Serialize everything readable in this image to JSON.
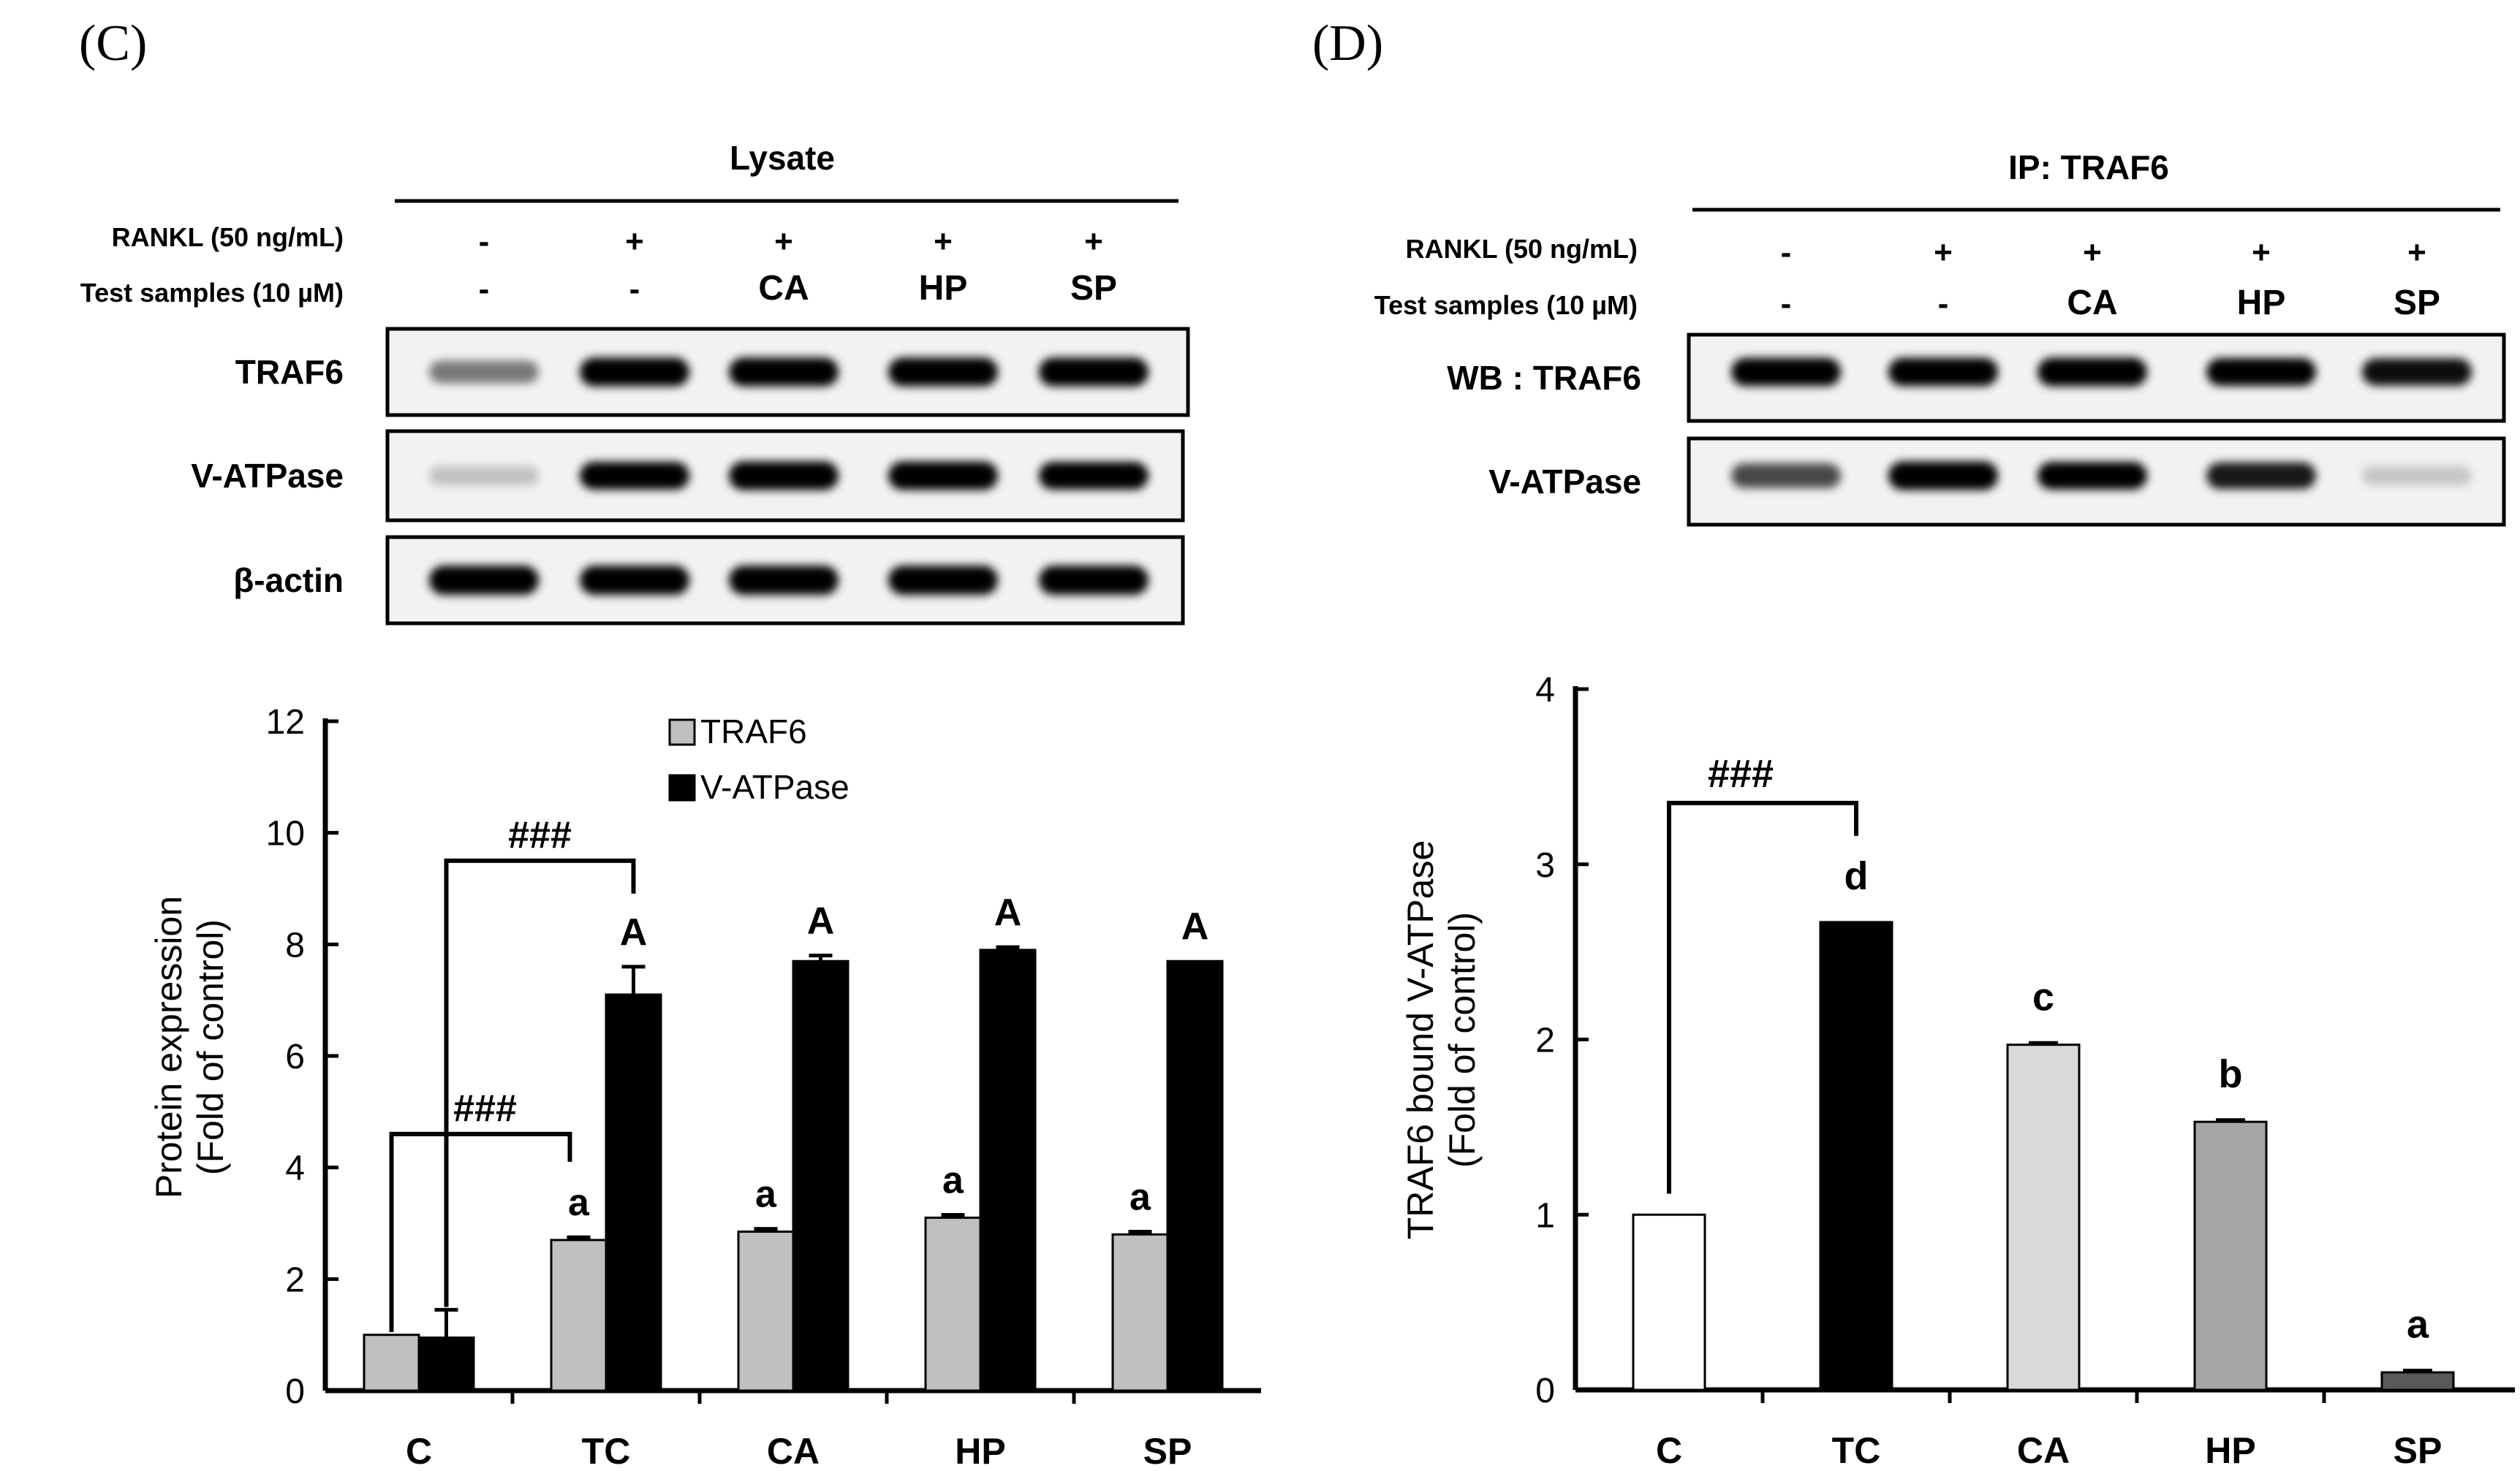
{
  "panel_labels": [
    "(C)",
    "(D)"
  ],
  "blot_c": {
    "header": "Lysate",
    "row_labels": [
      "RANKL (50 ng/mL)",
      "Test samples  (10 µM)"
    ],
    "rankl": [
      "-",
      "+",
      "+",
      "+",
      "+"
    ],
    "samples": [
      "-",
      "-",
      "CA",
      "HP",
      "SP"
    ],
    "band_labels": [
      "TRAF6",
      "V-ATPase",
      "β-actin"
    ],
    "band_intensity": {
      "TRAF6": [
        0.35,
        0.95,
        0.95,
        0.95,
        0.95
      ],
      "V-ATPase": [
        0.05,
        0.85,
        0.95,
        0.92,
        0.85
      ],
      "β-actin": [
        1,
        1,
        1,
        1,
        1
      ]
    }
  },
  "blot_d": {
    "header": "IP: TRAF6",
    "row_labels": [
      "RANKL (50 ng/mL)",
      "Test samples  (10 µM)"
    ],
    "rankl": [
      "-",
      "+",
      "+",
      "+",
      "+"
    ],
    "samples": [
      "-",
      "-",
      "CA",
      "HP",
      "SP"
    ],
    "band_labels": [
      "WB : TRAF6",
      "V-ATPase"
    ],
    "band_intensity": {
      "WB : TRAF6": [
        0.9,
        0.9,
        0.95,
        0.85,
        0.8
      ],
      "V-ATPase": [
        0.55,
        0.95,
        0.85,
        0.75,
        0.03
      ]
    }
  },
  "chart_data": [
    {
      "type": "bar",
      "panel": "C",
      "categories": [
        "C",
        "TC",
        "CA",
        "HP",
        "SP"
      ],
      "series": [
        {
          "name": "TRAF6",
          "values": [
            1.0,
            2.7,
            2.85,
            3.1,
            2.8
          ],
          "errors": [
            0.0,
            0.05,
            0.05,
            0.05,
            0.05
          ],
          "color": "#c0c0c0",
          "annotations": [
            "",
            "a",
            "a",
            "a",
            "a"
          ]
        },
        {
          "name": "V-ATPase",
          "values": [
            0.95,
            7.1,
            7.7,
            7.9,
            7.7
          ],
          "errors": [
            0.5,
            0.5,
            0.1,
            0.05,
            0.0
          ],
          "color": "#000000",
          "annotations": [
            "",
            "A",
            "A",
            "A",
            "A"
          ]
        }
      ],
      "ylabel": [
        "Protein expression",
        "(Fold of control)"
      ],
      "ylim": [
        0,
        12
      ],
      "yticks": [
        0,
        2,
        4,
        6,
        8,
        10,
        12
      ],
      "legend_position": "top",
      "significance": [
        "###",
        "###"
      ]
    },
    {
      "type": "bar",
      "panel": "D",
      "categories": [
        "C",
        "TC",
        "CA",
        "HP",
        "SP"
      ],
      "values": [
        1.0,
        2.67,
        1.97,
        1.53,
        0.1
      ],
      "errors": [
        0.0,
        0.0,
        0.01,
        0.01,
        0.01
      ],
      "colors": [
        "#ffffff",
        "#000000",
        "#d9d9d9",
        "#a6a6a6",
        "#595959"
      ],
      "annotations": [
        "",
        "d",
        "c",
        "b",
        "a"
      ],
      "ylabel": [
        "TRAF6 bound V-ATPase",
        "(Fold of control)"
      ],
      "ylim": [
        0,
        4
      ],
      "yticks": [
        0,
        1,
        2,
        3,
        4
      ],
      "significance": [
        "###"
      ]
    }
  ]
}
